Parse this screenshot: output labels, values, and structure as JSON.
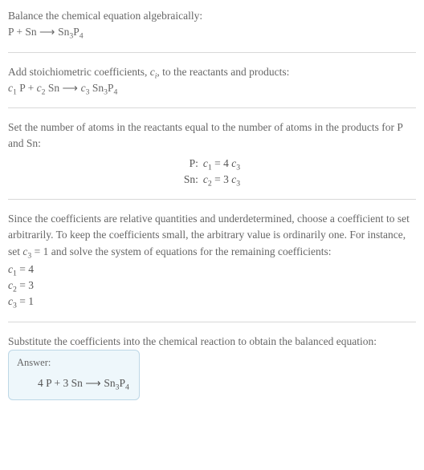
{
  "section1": {
    "line1": "Balance the chemical equation algebraically:",
    "eq_left_p": "P + Sn",
    "eq_right_sn": "Sn",
    "eq_right_sub_a": "3",
    "eq_right_p": "P",
    "eq_right_sub_b": "4"
  },
  "section2": {
    "line1a": "Add stoichiometric coefficients, ",
    "coeff_var": "c",
    "coeff_sub": "i",
    "line1b": ", to the reactants and products:",
    "c1": "c",
    "c1sub": "1",
    "p1": " P + ",
    "c2": "c",
    "c2sub": "2",
    "sn": " Sn",
    "c3": "c",
    "c3sub": "3",
    "prod_sn": " Sn",
    "prod_sub_a": "3",
    "prod_p": "P",
    "prod_sub_b": "4"
  },
  "section3": {
    "line1": "Set the number of atoms in the reactants equal to the number of atoms in the products for P and Sn:",
    "row1_label": "P:",
    "row1_c1": "c",
    "row1_c1sub": "1",
    "row1_mid": " = 4 ",
    "row1_c3": "c",
    "row1_c3sub": "3",
    "row2_label": "Sn:",
    "row2_c2": "c",
    "row2_c2sub": "2",
    "row2_mid": " = 3 ",
    "row2_c3": "c",
    "row2_c3sub": "3"
  },
  "section4": {
    "line1a": "Since the coefficients are relative quantities and underdetermined, choose a coefficient to set arbitrarily. To keep the coefficients small, the arbitrary value is ordinarily one. For instance, set ",
    "c3": "c",
    "c3sub": "3",
    "line1b": " = 1 and solve the system of equations for the remaining coefficients:",
    "a1_c": "c",
    "a1_sub": "1",
    "a1_val": " = 4",
    "a2_c": "c",
    "a2_sub": "2",
    "a2_val": " = 3",
    "a3_c": "c",
    "a3_sub": "3",
    "a3_val": " = 1"
  },
  "section5": {
    "line1": "Substitute the coefficients into the chemical reaction to obtain the balanced equation:",
    "answer_title": "Answer:",
    "ans_left": "4 P + 3 Sn",
    "ans_sn": "Sn",
    "ans_sub_a": "3",
    "ans_p": "P",
    "ans_sub_b": "4"
  },
  "arrow": " ⟶ "
}
